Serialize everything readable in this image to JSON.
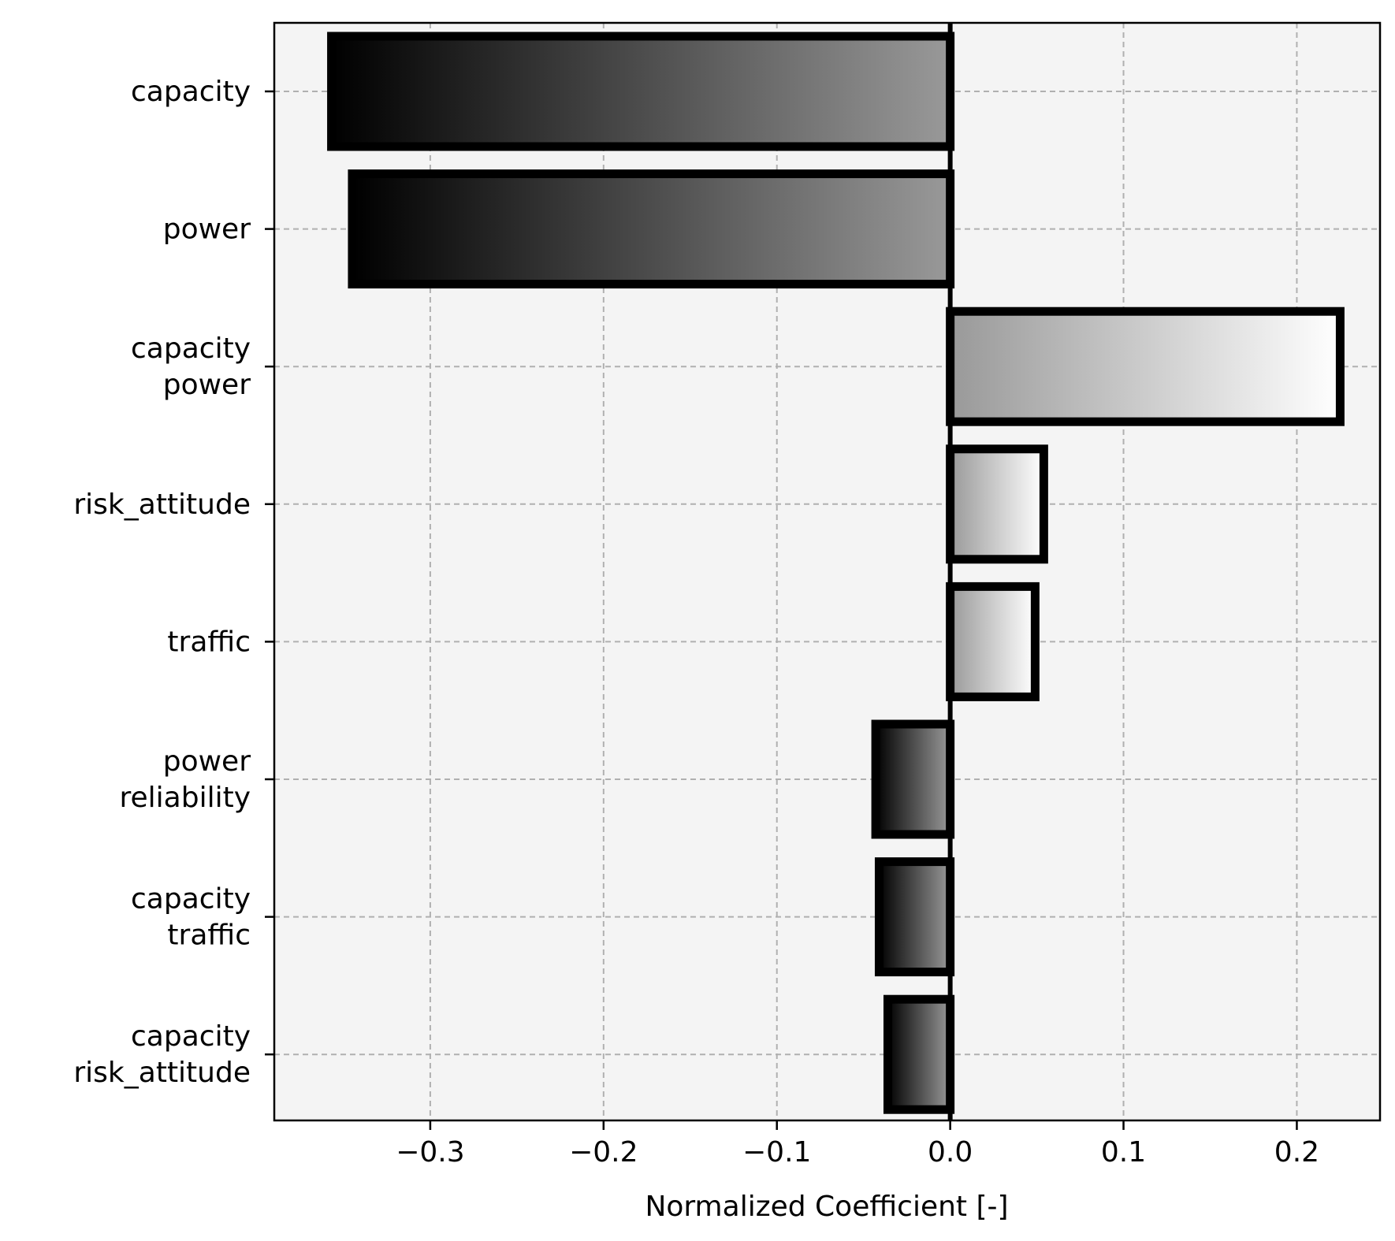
{
  "chart_data": {
    "type": "bar",
    "orientation": "horizontal",
    "title": "",
    "xlabel": "Normalized Coefficient [-]",
    "ylabel": "",
    "xlim": [
      -0.39,
      0.248
    ],
    "x_ticks": [
      -0.3,
      -0.2,
      -0.1,
      0.0,
      0.1,
      0.2
    ],
    "x_tick_labels": [
      "−0.3",
      "−0.2",
      "−0.1",
      "0.0",
      "0.1",
      "0.2"
    ],
    "categories": [
      [
        "capacity"
      ],
      [
        "power"
      ],
      [
        "capacity",
        "power"
      ],
      [
        "risk_attitude"
      ],
      [
        "traffic"
      ],
      [
        "power",
        "reliability"
      ],
      [
        "capacity",
        "traffic"
      ],
      [
        "capacity",
        "risk_attitude"
      ]
    ],
    "values": [
      -0.357,
      -0.345,
      0.225,
      0.054,
      0.049,
      -0.043,
      -0.041,
      -0.036
    ],
    "grid": true,
    "legend": false,
    "colors": {
      "plot_background": "#f4f4f4",
      "grid": "#b0b0b0",
      "bar_edge": "#000000",
      "negative_gradient": [
        "#000000",
        "#999999"
      ],
      "positive_gradient": [
        "#999999",
        "#ffffff"
      ],
      "zero_line": "#000000"
    }
  }
}
